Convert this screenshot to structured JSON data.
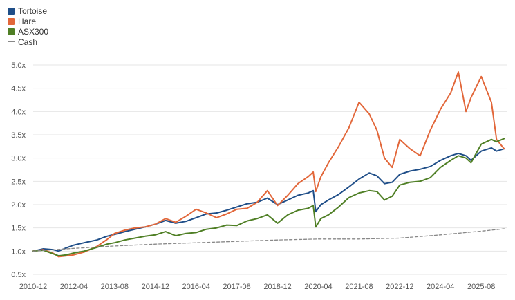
{
  "chart_data": {
    "type": "line",
    "ylim": [
      0.5,
      5.0
    ],
    "xlim": [
      "2010-12",
      "2026-06"
    ],
    "grid": "horizontal",
    "legend_position": "top-left",
    "y_ticks": [
      0.5,
      1.0,
      1.5,
      2.0,
      2.5,
      3.0,
      3.5,
      4.0,
      4.5,
      5.0
    ],
    "y_tick_labels": [
      "0.5x",
      "1.0x",
      "1.5x",
      "2.0x",
      "2.5x",
      "3.0x",
      "3.5x",
      "4.0x",
      "4.5x",
      "5.0x"
    ],
    "x_tick_labels": [
      "2010-12",
      "2012-04",
      "2013-08",
      "2014-12",
      "2016-04",
      "2017-08",
      "2018-12",
      "2020-04",
      "2021-08",
      "2022-12",
      "2024-04",
      "2025-08"
    ],
    "series": [
      {
        "name": "Tortoise",
        "color": "#1f4e88",
        "style": "solid",
        "points": [
          [
            "2010-12",
            1.0
          ],
          [
            "2011-04",
            1.05
          ],
          [
            "2011-08",
            1.03
          ],
          [
            "2011-10",
            1.0
          ],
          [
            "2012-01",
            1.07
          ],
          [
            "2012-04",
            1.13
          ],
          [
            "2012-08",
            1.18
          ],
          [
            "2013-01",
            1.24
          ],
          [
            "2013-05",
            1.32
          ],
          [
            "2013-08",
            1.36
          ],
          [
            "2013-12",
            1.42
          ],
          [
            "2014-04",
            1.47
          ],
          [
            "2014-08",
            1.52
          ],
          [
            "2014-12",
            1.58
          ],
          [
            "2015-04",
            1.66
          ],
          [
            "2015-08",
            1.6
          ],
          [
            "2015-12",
            1.64
          ],
          [
            "2016-04",
            1.72
          ],
          [
            "2016-08",
            1.8
          ],
          [
            "2016-12",
            1.82
          ],
          [
            "2017-04",
            1.88
          ],
          [
            "2017-08",
            1.95
          ],
          [
            "2017-12",
            2.02
          ],
          [
            "2018-04",
            2.05
          ],
          [
            "2018-08",
            2.14
          ],
          [
            "2018-12",
            2.0
          ],
          [
            "2019-04",
            2.1
          ],
          [
            "2019-08",
            2.2
          ],
          [
            "2019-12",
            2.25
          ],
          [
            "2020-02",
            2.3
          ],
          [
            "2020-03",
            1.85
          ],
          [
            "2020-05",
            2.0
          ],
          [
            "2020-08",
            2.1
          ],
          [
            "2020-12",
            2.22
          ],
          [
            "2021-04",
            2.38
          ],
          [
            "2021-08",
            2.55
          ],
          [
            "2021-12",
            2.68
          ],
          [
            "2022-03",
            2.62
          ],
          [
            "2022-06",
            2.45
          ],
          [
            "2022-09",
            2.48
          ],
          [
            "2022-12",
            2.65
          ],
          [
            "2023-04",
            2.72
          ],
          [
            "2023-08",
            2.76
          ],
          [
            "2023-12",
            2.82
          ],
          [
            "2024-04",
            2.95
          ],
          [
            "2024-08",
            3.05
          ],
          [
            "2024-11",
            3.1
          ],
          [
            "2025-02",
            3.05
          ],
          [
            "2025-04",
            2.95
          ],
          [
            "2025-08",
            3.15
          ],
          [
            "2025-12",
            3.22
          ],
          [
            "2026-02",
            3.15
          ],
          [
            "2026-05",
            3.2
          ]
        ]
      },
      {
        "name": "Hare",
        "color": "#e2673a",
        "style": "solid",
        "points": [
          [
            "2010-12",
            1.0
          ],
          [
            "2011-04",
            1.03
          ],
          [
            "2011-08",
            0.95
          ],
          [
            "2011-10",
            0.88
          ],
          [
            "2012-01",
            0.9
          ],
          [
            "2012-04",
            0.92
          ],
          [
            "2012-08",
            0.98
          ],
          [
            "2013-01",
            1.1
          ],
          [
            "2013-05",
            1.25
          ],
          [
            "2013-08",
            1.38
          ],
          [
            "2013-12",
            1.45
          ],
          [
            "2014-04",
            1.5
          ],
          [
            "2014-08",
            1.52
          ],
          [
            "2014-12",
            1.58
          ],
          [
            "2015-04",
            1.7
          ],
          [
            "2015-08",
            1.62
          ],
          [
            "2015-12",
            1.75
          ],
          [
            "2016-04",
            1.9
          ],
          [
            "2016-08",
            1.82
          ],
          [
            "2016-12",
            1.72
          ],
          [
            "2017-04",
            1.8
          ],
          [
            "2017-08",
            1.9
          ],
          [
            "2017-12",
            1.92
          ],
          [
            "2018-04",
            2.05
          ],
          [
            "2018-08",
            2.3
          ],
          [
            "2018-12",
            1.98
          ],
          [
            "2019-04",
            2.2
          ],
          [
            "2019-08",
            2.45
          ],
          [
            "2019-12",
            2.6
          ],
          [
            "2020-02",
            2.7
          ],
          [
            "2020-03",
            2.28
          ],
          [
            "2020-05",
            2.6
          ],
          [
            "2020-08",
            2.9
          ],
          [
            "2020-12",
            3.25
          ],
          [
            "2021-04",
            3.65
          ],
          [
            "2021-08",
            4.2
          ],
          [
            "2021-12",
            3.95
          ],
          [
            "2022-03",
            3.6
          ],
          [
            "2022-06",
            3.0
          ],
          [
            "2022-09",
            2.8
          ],
          [
            "2022-12",
            3.4
          ],
          [
            "2023-04",
            3.2
          ],
          [
            "2023-08",
            3.05
          ],
          [
            "2023-12",
            3.6
          ],
          [
            "2024-04",
            4.05
          ],
          [
            "2024-08",
            4.4
          ],
          [
            "2024-11",
            4.85
          ],
          [
            "2025-02",
            4.0
          ],
          [
            "2025-04",
            4.3
          ],
          [
            "2025-08",
            4.75
          ],
          [
            "2025-12",
            4.2
          ],
          [
            "2026-02",
            3.4
          ],
          [
            "2026-05",
            3.2
          ]
        ]
      },
      {
        "name": "ASX300",
        "color": "#4f7f25",
        "style": "solid",
        "points": [
          [
            "2010-12",
            1.0
          ],
          [
            "2011-04",
            1.02
          ],
          [
            "2011-08",
            0.94
          ],
          [
            "2011-10",
            0.9
          ],
          [
            "2012-01",
            0.92
          ],
          [
            "2012-04",
            0.96
          ],
          [
            "2012-08",
            1.0
          ],
          [
            "2013-01",
            1.08
          ],
          [
            "2013-05",
            1.15
          ],
          [
            "2013-08",
            1.18
          ],
          [
            "2013-12",
            1.24
          ],
          [
            "2014-04",
            1.28
          ],
          [
            "2014-08",
            1.32
          ],
          [
            "2014-12",
            1.35
          ],
          [
            "2015-04",
            1.42
          ],
          [
            "2015-08",
            1.33
          ],
          [
            "2015-12",
            1.38
          ],
          [
            "2016-04",
            1.4
          ],
          [
            "2016-08",
            1.47
          ],
          [
            "2016-12",
            1.5
          ],
          [
            "2017-04",
            1.56
          ],
          [
            "2017-08",
            1.55
          ],
          [
            "2017-12",
            1.65
          ],
          [
            "2018-04",
            1.7
          ],
          [
            "2018-08",
            1.78
          ],
          [
            "2018-12",
            1.6
          ],
          [
            "2019-04",
            1.78
          ],
          [
            "2019-08",
            1.88
          ],
          [
            "2019-12",
            1.92
          ],
          [
            "2020-02",
            1.98
          ],
          [
            "2020-03",
            1.52
          ],
          [
            "2020-05",
            1.7
          ],
          [
            "2020-08",
            1.78
          ],
          [
            "2020-12",
            1.95
          ],
          [
            "2021-04",
            2.15
          ],
          [
            "2021-08",
            2.25
          ],
          [
            "2021-12",
            2.3
          ],
          [
            "2022-03",
            2.28
          ],
          [
            "2022-06",
            2.1
          ],
          [
            "2022-09",
            2.18
          ],
          [
            "2022-12",
            2.42
          ],
          [
            "2023-04",
            2.48
          ],
          [
            "2023-08",
            2.5
          ],
          [
            "2023-12",
            2.58
          ],
          [
            "2024-04",
            2.8
          ],
          [
            "2024-08",
            2.95
          ],
          [
            "2024-11",
            3.05
          ],
          [
            "2025-02",
            3.0
          ],
          [
            "2025-04",
            2.9
          ],
          [
            "2025-08",
            3.3
          ],
          [
            "2025-12",
            3.4
          ],
          [
            "2026-02",
            3.35
          ],
          [
            "2026-05",
            3.42
          ]
        ]
      },
      {
        "name": "Cash",
        "color": "#888888",
        "style": "dashed",
        "points": [
          [
            "2010-12",
            1.0
          ],
          [
            "2012-04",
            1.06
          ],
          [
            "2013-08",
            1.11
          ],
          [
            "2014-12",
            1.15
          ],
          [
            "2016-04",
            1.18
          ],
          [
            "2017-08",
            1.21
          ],
          [
            "2018-12",
            1.24
          ],
          [
            "2020-04",
            1.26
          ],
          [
            "2021-08",
            1.26
          ],
          [
            "2022-12",
            1.28
          ],
          [
            "2024-04",
            1.35
          ],
          [
            "2025-08",
            1.43
          ],
          [
            "2026-05",
            1.48
          ]
        ]
      }
    ]
  }
}
